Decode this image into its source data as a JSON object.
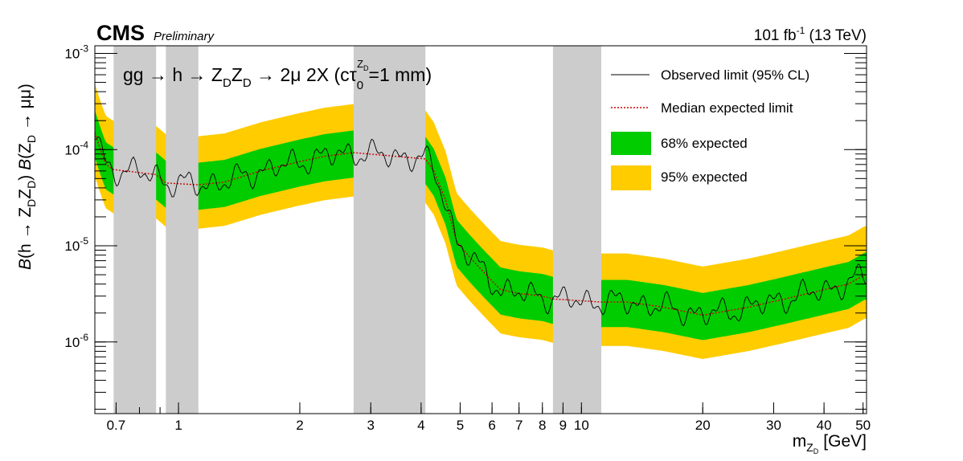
{
  "header": {
    "experiment": "CMS",
    "status": "Preliminary",
    "lumi_value": "101 fb",
    "lumi_exp": "-1",
    "energy": "(13 TeV)"
  },
  "chart_data": {
    "type": "line",
    "title": "gg → h → Z_D Z_D → 2μ 2X (cτ_0^{Z_D} = 1 mm)",
    "title_parts": {
      "t1": "gg → h → Z",
      "sub1": "D",
      "t2": "Z",
      "sub2": "D",
      "t3": " → 2μ 2X (cτ",
      "sub3": "0",
      "sup3": "Z",
      "supsub3": "D",
      "t4": "=1 mm)"
    },
    "xlabel": "m_{Z_D} [GeV]",
    "xlabel_parts": {
      "m": "m",
      "sub": "Z",
      "subsub": "D",
      "unit": "[GeV]"
    },
    "ylabel": "B(h → Z_D Z_D) B(Z_D → μμ)",
    "ylabel_parts": {
      "a": "B",
      "b": "(h → Z",
      "c": "D",
      "d": "Z",
      "e": "D",
      "f": ") ",
      "g": "B",
      "h": "(Z",
      "i": "D",
      "j": " → μμ)"
    },
    "xscale": "log",
    "yscale": "log",
    "xlim": [
      0.62,
      51
    ],
    "ylim": [
      1.8e-07,
      0.0012
    ],
    "grid": false,
    "legend_position": "top-right",
    "x_ticks": [
      0.7,
      1,
      2,
      3,
      4,
      5,
      6,
      7,
      8,
      9,
      10,
      20,
      30,
      40,
      50
    ],
    "x_tick_labels": [
      "0.7",
      "1",
      "2",
      "3",
      "4",
      "5",
      "6",
      "7",
      "8",
      "9",
      "10",
      "20",
      "30",
      "40",
      "50"
    ],
    "y_ticks": [
      1e-06,
      1e-05,
      0.0001,
      0.001
    ],
    "y_tick_labels": [
      {
        "base": "10",
        "exp": "-6"
      },
      {
        "base": "10",
        "exp": "-5"
      },
      {
        "base": "10",
        "exp": "-4"
      },
      {
        "base": "10",
        "exp": "-3"
      }
    ],
    "excluded_regions": [
      [
        0.69,
        0.88
      ],
      [
        0.93,
        1.12
      ],
      [
        2.72,
        4.1
      ],
      [
        8.5,
        11.2
      ]
    ],
    "median_anchor_points": [
      [
        0.62,
        0.00015
      ],
      [
        0.64,
        0.0001
      ],
      [
        0.66,
        7e-05
      ],
      [
        0.69,
        6.2e-05
      ],
      [
        0.88,
        5.5e-05
      ],
      [
        0.93,
        4.5e-05
      ],
      [
        1.12,
        4.3e-05
      ],
      [
        1.3,
        4.6e-05
      ],
      [
        1.6,
        6e-05
      ],
      [
        2.0,
        7.5e-05
      ],
      [
        2.3,
        8.5e-05
      ],
      [
        2.72,
        9.3e-05
      ],
      [
        4.1,
        8e-05
      ],
      [
        4.3,
        6e-05
      ],
      [
        4.6,
        3e-05
      ],
      [
        4.9,
        1.1e-05
      ],
      [
        5.3,
        7.5e-06
      ],
      [
        5.8,
        5e-06
      ],
      [
        6.3,
        3.5e-06
      ],
      [
        7.0,
        3.2e-06
      ],
      [
        8.0,
        3e-06
      ],
      [
        8.5,
        2.8e-06
      ],
      [
        11.2,
        2.6e-06
      ],
      [
        13.0,
        2.6e-06
      ],
      [
        16.0,
        2.3e-06
      ],
      [
        20.0,
        1.9e-06
      ],
      [
        26.0,
        2.3e-06
      ],
      [
        32.0,
        2.8e-06
      ],
      [
        40.0,
        3.5e-06
      ],
      [
        46.0,
        4e-06
      ],
      [
        50.5,
        5e-06
      ]
    ],
    "series": [
      {
        "name": "Observed limit (95% CL)",
        "color": "#000000",
        "style": "solid"
      },
      {
        "name": "Median expected limit",
        "color": "#cc0000",
        "style": "dotted"
      },
      {
        "name": "68% expected",
        "color": "#00cc00",
        "style": "band"
      },
      {
        "name": "95% expected",
        "color": "#ffcc00",
        "style": "band"
      }
    ],
    "band_68_factors": [
      0.55,
      1.7
    ],
    "band_95_factors": [
      0.35,
      3.2
    ],
    "excluded_color": "#cccccc"
  },
  "legend": {
    "items": [
      {
        "label": "Observed limit (95% CL)"
      },
      {
        "label": "Median expected limit"
      },
      {
        "label": "68% expected"
      },
      {
        "label": "95% expected"
      }
    ]
  }
}
